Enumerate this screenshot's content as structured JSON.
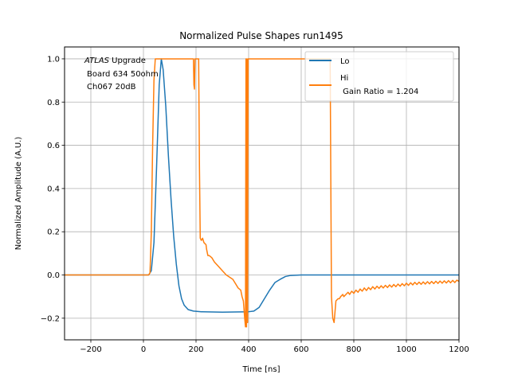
{
  "chart_data": {
    "type": "line",
    "title": "Normalized Pulse Shapes run1495",
    "xlabel": "Time [ns]",
    "ylabel": "Normalized Amplitude (A.U.)",
    "xlim": [
      -300,
      1200
    ],
    "ylim": [
      -0.3,
      1.055
    ],
    "xticks": [
      -200,
      0,
      200,
      400,
      600,
      800,
      1000,
      1200
    ],
    "xtick_labels": [
      "−200",
      "0",
      "200",
      "400",
      "600",
      "800",
      "1000",
      "1200"
    ],
    "yticks": [
      -0.2,
      0.0,
      0.2,
      0.4,
      0.6,
      0.8,
      1.0
    ],
    "ytick_labels": [
      "−0.2",
      "0.0",
      "0.2",
      "0.4",
      "0.6",
      "0.8",
      "1.0"
    ],
    "grid": true,
    "legend_position": "top-right",
    "annotation": {
      "lines": [
        {
          "italic": "ATLAS",
          "text": " Upgrade"
        },
        {
          "italic": "",
          "text": "Board 634 50ohm"
        },
        {
          "italic": "",
          "text": "Ch067 20dB"
        }
      ]
    },
    "series": [
      {
        "name": "Lo",
        "label": "Lo",
        "color": "#1f77b4",
        "points": [
          [
            -300,
            0.0
          ],
          [
            20,
            0.0
          ],
          [
            30,
            0.02
          ],
          [
            40,
            0.15
          ],
          [
            50,
            0.5
          ],
          [
            60,
            0.88
          ],
          [
            68,
            1.0
          ],
          [
            75,
            0.95
          ],
          [
            85,
            0.78
          ],
          [
            95,
            0.55
          ],
          [
            105,
            0.35
          ],
          [
            115,
            0.18
          ],
          [
            125,
            0.05
          ],
          [
            135,
            -0.05
          ],
          [
            145,
            -0.11
          ],
          [
            155,
            -0.14
          ],
          [
            170,
            -0.16
          ],
          [
            190,
            -0.167
          ],
          [
            220,
            -0.17
          ],
          [
            300,
            -0.172
          ],
          [
            400,
            -0.17
          ],
          [
            420,
            -0.167
          ],
          [
            440,
            -0.15
          ],
          [
            460,
            -0.11
          ],
          [
            480,
            -0.07
          ],
          [
            500,
            -0.035
          ],
          [
            520,
            -0.02
          ],
          [
            540,
            -0.007
          ],
          [
            560,
            -0.002
          ],
          [
            600,
            0.0
          ],
          [
            700,
            0.0
          ],
          [
            1200,
            0.0
          ]
        ]
      },
      {
        "name": "Hi",
        "label": "Hi\n Gain Ratio = 1.204",
        "legend_line1": "Hi",
        "legend_line2": " Gain Ratio = 1.204",
        "color": "#ff7f0e",
        "points": [
          [
            -300,
            0.0
          ],
          [
            20,
            0.0
          ],
          [
            25,
            0.01
          ],
          [
            30,
            0.2
          ],
          [
            35,
            0.6
          ],
          [
            40,
            0.9
          ],
          [
            45,
            1.0
          ],
          [
            190,
            1.0
          ],
          [
            192,
            0.88
          ],
          [
            194,
            0.86
          ],
          [
            196,
            1.0
          ],
          [
            200,
            1.0
          ],
          [
            210,
            1.0
          ],
          [
            213,
            0.5
          ],
          [
            216,
            0.17
          ],
          [
            220,
            0.16
          ],
          [
            225,
            0.17
          ],
          [
            230,
            0.15
          ],
          [
            238,
            0.14
          ],
          [
            240,
            0.12
          ],
          [
            245,
            0.09
          ],
          [
            250,
            0.09
          ],
          [
            260,
            0.08
          ],
          [
            270,
            0.06
          ],
          [
            285,
            0.04
          ],
          [
            300,
            0.02
          ],
          [
            315,
            0.0
          ],
          [
            340,
            -0.02
          ],
          [
            350,
            -0.04
          ],
          [
            360,
            -0.06
          ],
          [
            370,
            -0.07
          ],
          [
            375,
            -0.1
          ],
          [
            380,
            -0.12
          ],
          [
            385,
            -0.2
          ],
          [
            388,
            -0.24
          ],
          [
            390,
            1.0
          ],
          [
            392,
            -0.24
          ],
          [
            394,
            1.0
          ],
          [
            396,
            -0.22
          ],
          [
            398,
            1.0
          ],
          [
            402,
            1.0
          ],
          [
            710,
            1.0
          ],
          [
            715,
            -0.1
          ],
          [
            720,
            -0.2
          ],
          [
            725,
            -0.22
          ],
          [
            732,
            -0.12
          ],
          [
            740,
            -0.11
          ],
          [
            745,
            -0.11
          ],
          [
            750,
            -0.1
          ],
          [
            758,
            -0.09
          ],
          [
            762,
            -0.1
          ],
          [
            770,
            -0.09
          ],
          [
            778,
            -0.08
          ],
          [
            784,
            -0.09
          ],
          [
            792,
            -0.075
          ],
          [
            800,
            -0.085
          ],
          [
            808,
            -0.07
          ],
          [
            816,
            -0.08
          ],
          [
            824,
            -0.065
          ],
          [
            832,
            -0.075
          ],
          [
            840,
            -0.06
          ],
          [
            848,
            -0.072
          ],
          [
            856,
            -0.058
          ],
          [
            864,
            -0.068
          ],
          [
            872,
            -0.054
          ],
          [
            880,
            -0.065
          ],
          [
            888,
            -0.052
          ],
          [
            896,
            -0.062
          ],
          [
            904,
            -0.05
          ],
          [
            912,
            -0.06
          ],
          [
            920,
            -0.048
          ],
          [
            928,
            -0.058
          ],
          [
            936,
            -0.046
          ],
          [
            944,
            -0.056
          ],
          [
            952,
            -0.044
          ],
          [
            960,
            -0.054
          ],
          [
            968,
            -0.042
          ],
          [
            976,
            -0.052
          ],
          [
            984,
            -0.04
          ],
          [
            992,
            -0.05
          ],
          [
            1000,
            -0.038
          ],
          [
            1008,
            -0.048
          ],
          [
            1016,
            -0.036
          ],
          [
            1024,
            -0.046
          ],
          [
            1032,
            -0.034
          ],
          [
            1040,
            -0.044
          ],
          [
            1048,
            -0.033
          ],
          [
            1056,
            -0.043
          ],
          [
            1064,
            -0.032
          ],
          [
            1072,
            -0.042
          ],
          [
            1080,
            -0.031
          ],
          [
            1088,
            -0.041
          ],
          [
            1096,
            -0.03
          ],
          [
            1104,
            -0.04
          ],
          [
            1112,
            -0.029
          ],
          [
            1120,
            -0.039
          ],
          [
            1128,
            -0.028
          ],
          [
            1136,
            -0.038
          ],
          [
            1144,
            -0.027
          ],
          [
            1152,
            -0.037
          ],
          [
            1160,
            -0.026
          ],
          [
            1168,
            -0.036
          ],
          [
            1176,
            -0.025
          ],
          [
            1184,
            -0.035
          ],
          [
            1192,
            -0.024
          ],
          [
            1200,
            -0.03
          ]
        ]
      }
    ]
  }
}
